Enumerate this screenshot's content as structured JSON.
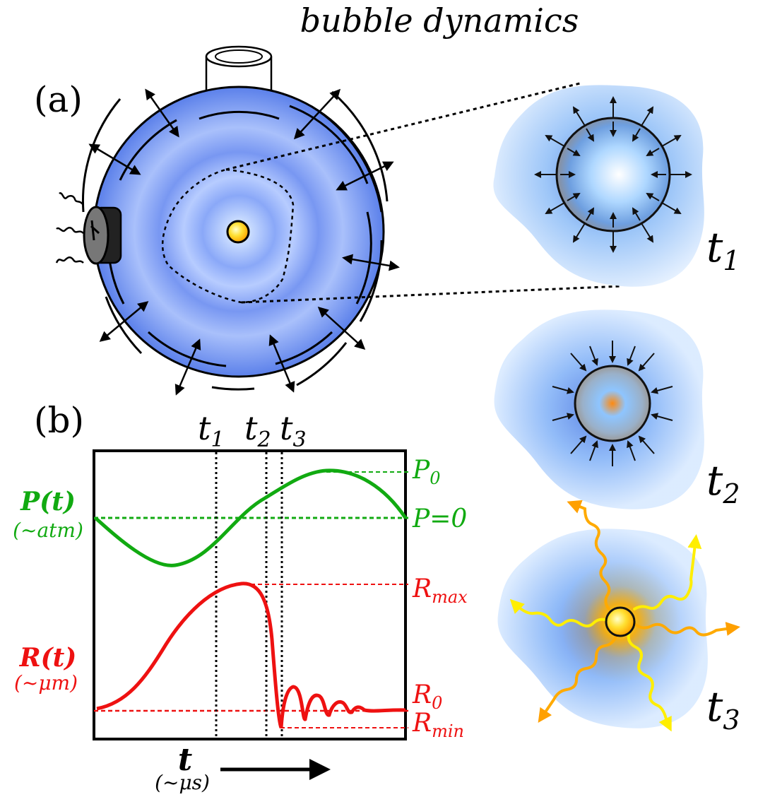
{
  "title": "bubble dynamics",
  "panel_a": {
    "label": "(a)"
  },
  "panel_b": {
    "label": "(b)"
  },
  "time_markers": {
    "t1": {
      "base": "t",
      "sub": "1"
    },
    "t2": {
      "base": "t",
      "sub": "2"
    },
    "t3": {
      "base": "t",
      "sub": "3"
    }
  },
  "plot": {
    "p_label": "P(t)",
    "p_unit": "(~atm)",
    "r_label": "R(t)",
    "r_unit": "(~μm)",
    "x_label": "t",
    "x_unit": "(~μs)",
    "p0": {
      "base": "P",
      "sub": "0"
    },
    "p_zero": "P=0",
    "rmax": {
      "base": "R",
      "sub": "max"
    },
    "r0": {
      "base": "R",
      "sub": "0"
    },
    "rmin": {
      "base": "R",
      "sub": "min"
    }
  },
  "insets": {
    "t1": {
      "base": "t",
      "sub": "1"
    },
    "t2": {
      "base": "t",
      "sub": "2"
    },
    "t3": {
      "base": "t",
      "sub": "3"
    }
  },
  "colors": {
    "pressure": "#11aa11",
    "radius": "#ee1111",
    "flask_blue": "#6b8ff0",
    "light_yellow": "#ffff22",
    "light_orange": "#ffa500"
  }
}
